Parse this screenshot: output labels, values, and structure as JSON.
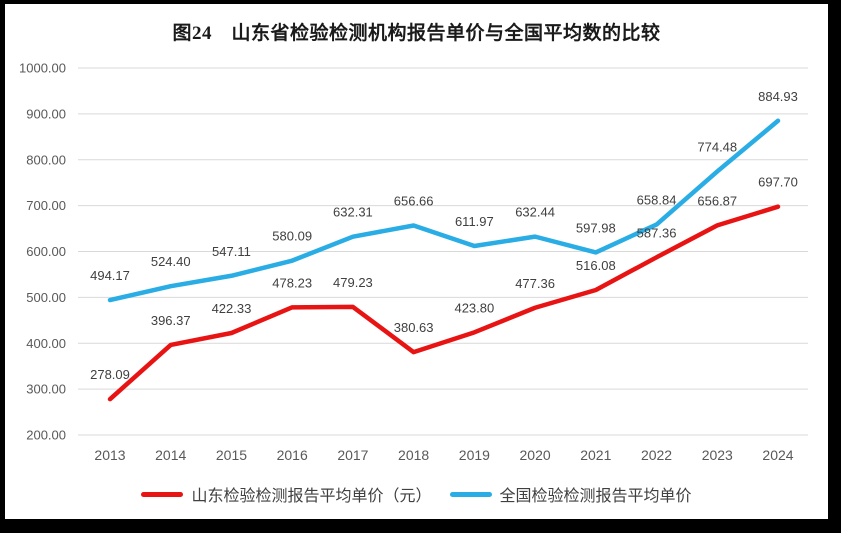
{
  "title": "图24　山东省检验检测机构报告单价与全国平均数的比较",
  "chart_data": {
    "type": "line",
    "title": "图24 山东省检验检测机构报告单价与全国平均数的比较",
    "categories": [
      "2013",
      "2014",
      "2015",
      "2016",
      "2017",
      "2018",
      "2019",
      "2020",
      "2021",
      "2022",
      "2023",
      "2024"
    ],
    "series": [
      {
        "name": "山东检验检测报告平均单价（元）",
        "color": "#e81414",
        "values": [
          278.09,
          396.37,
          422.33,
          478.23,
          479.23,
          380.63,
          423.8,
          477.36,
          516.08,
          587.36,
          656.87,
          697.7
        ]
      },
      {
        "name": "全国检验检测报告平均单价",
        "color": "#29ade4",
        "values": [
          494.17,
          524.4,
          547.11,
          580.09,
          632.31,
          656.66,
          611.97,
          632.44,
          597.98,
          658.84,
          774.48,
          884.93
        ]
      }
    ],
    "xlabel": "",
    "ylabel": "",
    "ylim": [
      200,
      1000
    ],
    "ytick_step": 100,
    "ytick_labels": [
      "1000.00",
      "900.00",
      "800.00",
      "700.00",
      "600.00",
      "500.00",
      "400.00",
      "300.00",
      "200.00"
    ],
    "grid": true,
    "data_labels": true,
    "data_label_format": "0.00",
    "legend_position": "bottom"
  },
  "colors": {
    "grid": "#d9d9d9",
    "tick_text": "#595959",
    "data_label_text": "#404040",
    "title_text": "#1a1a1a",
    "frame_border": "#000000",
    "background": "#ffffff"
  }
}
